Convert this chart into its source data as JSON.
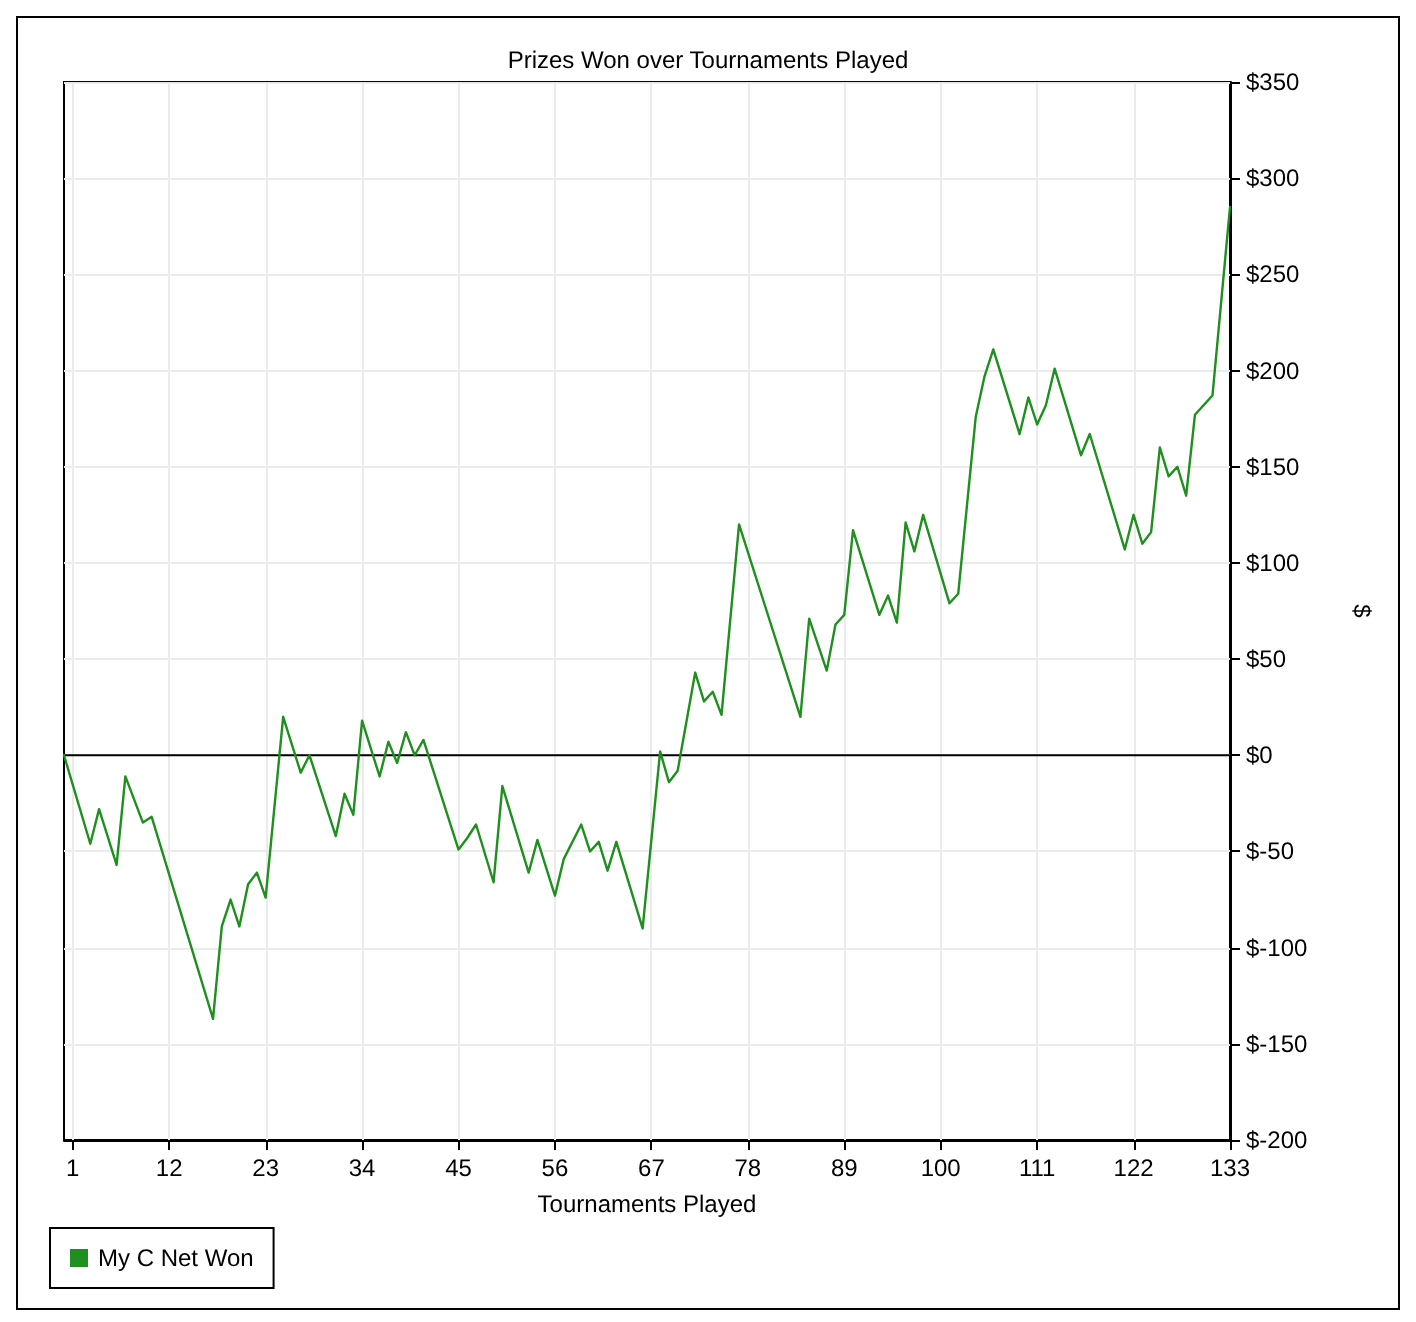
{
  "chart_data": {
    "type": "line",
    "title": "Prizes Won over Tournaments Played",
    "xlabel": "Tournaments Played",
    "ylabel": "$",
    "xlim": [
      0,
      133
    ],
    "xticks": [
      1,
      12,
      23,
      34,
      45,
      56,
      67,
      78,
      89,
      100,
      111,
      122,
      133
    ],
    "ylim": [
      -200,
      350
    ],
    "yticks": [
      {
        "value": -200,
        "label": "$-200"
      },
      {
        "value": -150,
        "label": "$-150"
      },
      {
        "value": -100,
        "label": "$-100"
      },
      {
        "value": -50,
        "label": "$-50"
      },
      {
        "value": 0,
        "label": "$0"
      },
      {
        "value": 50,
        "label": "$50"
      },
      {
        "value": 100,
        "label": "$100"
      },
      {
        "value": 150,
        "label": "$150"
      },
      {
        "value": 200,
        "label": "$200"
      },
      {
        "value": 250,
        "label": "$250"
      },
      {
        "value": 300,
        "label": "$300"
      },
      {
        "value": 350,
        "label": "$350"
      }
    ],
    "grid": true,
    "legend": "bottom left",
    "marker": "none",
    "line_style": "solid",
    "ref_lines": [
      {
        "axis": "y",
        "value": 0,
        "color": "#000000"
      }
    ],
    "series": [
      {
        "name": "My C Net Won",
        "color": "#1f8f1f",
        "x": [
          0,
          3,
          4,
          6,
          7,
          9,
          10,
          17,
          18,
          19,
          20,
          21,
          22,
          23,
          25,
          27,
          28,
          31,
          32,
          33,
          34,
          36,
          37,
          38,
          39,
          40,
          41,
          45,
          46,
          47,
          49,
          50,
          53,
          54,
          56,
          57,
          59,
          60,
          61,
          62,
          63,
          66,
          68,
          69,
          70,
          72,
          73,
          74,
          75,
          77,
          84,
          85,
          87,
          88,
          89,
          90,
          93,
          94,
          95,
          96,
          97,
          98,
          101,
          102,
          104,
          105,
          106,
          109,
          110,
          111,
          112,
          113,
          116,
          117,
          121,
          122,
          123,
          124,
          125,
          126,
          127,
          128,
          129,
          131,
          133
        ],
        "values": [
          0,
          -46,
          -28,
          -57,
          -11,
          -35,
          -32,
          -137,
          -89,
          -75,
          -89,
          -67,
          -61,
          -74,
          20,
          -9,
          0,
          -42,
          -20,
          -31,
          18,
          -11,
          7,
          -4,
          12,
          0,
          8,
          -49,
          -43,
          -36,
          -66,
          -16,
          -61,
          -44,
          -73,
          -54,
          -36,
          -50,
          -45,
          -60,
          -45,
          -90,
          2,
          -14,
          -8,
          43,
          28,
          33,
          21,
          120,
          20,
          71,
          44,
          68,
          73,
          117,
          73,
          83,
          69,
          121,
          106,
          125,
          79,
          84,
          176,
          197,
          211,
          167,
          186,
          172,
          182,
          201,
          156,
          167,
          107,
          125,
          110,
          116,
          160,
          145,
          150,
          135,
          177,
          187,
          285
        ]
      }
    ]
  }
}
